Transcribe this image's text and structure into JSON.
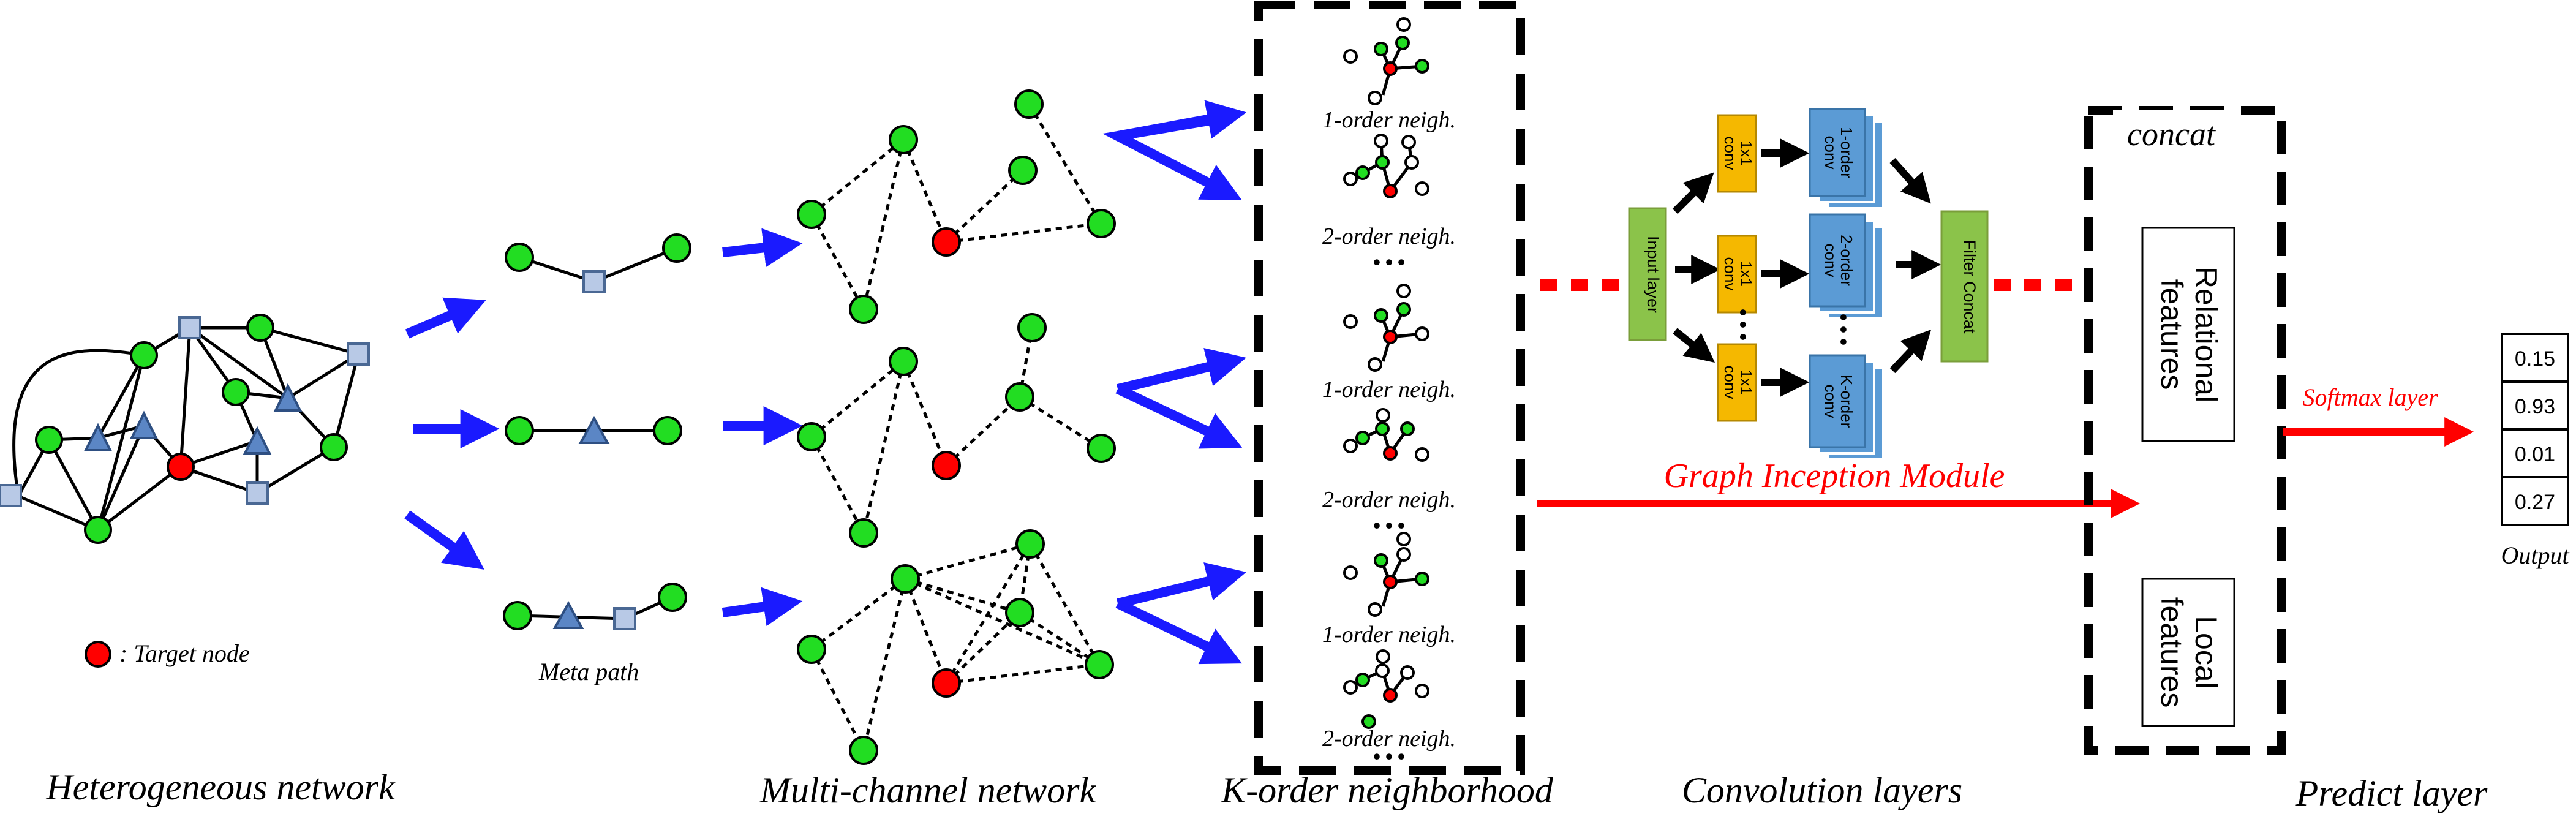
{
  "labels": {
    "target_node": ": Target node",
    "meta_path": "Meta path",
    "order1": "1-order neigh.",
    "order2": "2-order neigh.",
    "input_layer": "Input layer",
    "conv_1x1": "1x1",
    "conv_word": "conv",
    "order_conv_1": "1-order",
    "order_conv_2": "2-order",
    "order_conv_k": "K-order",
    "filter_concat": "Filter Concat",
    "concat": "concat",
    "relational_features": "Relational\nfeatures",
    "local_features": "Local\nfeatures",
    "softmax_layer": "Softmax layer",
    "graph_inception_module": "Graph Inception Module",
    "output_label": "Output"
  },
  "output_values": [
    "0.15",
    "0.93",
    "0.01",
    "0.27"
  ],
  "section_titles": [
    "Heterogeneous network",
    "Multi-channel network",
    "K-order neighborhood",
    "Convolution layers",
    "Predict layer"
  ],
  "colors": {
    "node_green": "#22dd22",
    "node_red": "#ff0000",
    "arrow_blue": "#1a1aff",
    "conv_orange": "#f5b800",
    "conv_blue": "#5b9bd5",
    "layer_green": "#8bc34a",
    "highlight_red": "#ff0000"
  }
}
